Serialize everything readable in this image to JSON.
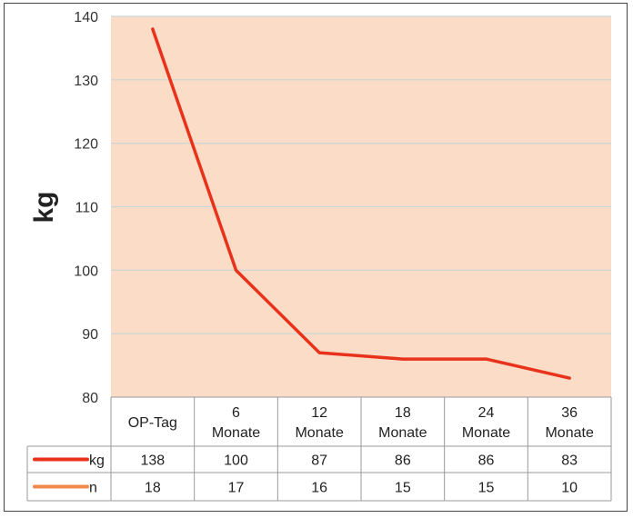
{
  "chart_data": {
    "type": "line",
    "title": "",
    "xlabel": "",
    "ylabel": "kg",
    "ylim": [
      80,
      140
    ],
    "yticks": [
      80,
      90,
      100,
      110,
      120,
      130,
      140
    ],
    "grid": true,
    "categories": [
      [
        "OP-Tag"
      ],
      [
        "6",
        "Monate"
      ],
      [
        "12",
        "Monate"
      ],
      [
        "18",
        "Monate"
      ],
      [
        "24",
        "Monate"
      ],
      [
        "36",
        "Monate"
      ]
    ],
    "series": [
      {
        "name": "kg",
        "values": [
          138,
          100,
          87,
          86,
          86,
          83
        ],
        "color": "#e8321b"
      },
      {
        "name": "n",
        "values": [
          18,
          17,
          16,
          15,
          15,
          10
        ],
        "color": "#f08a4b"
      }
    ],
    "plot_background": "#fbdcc6",
    "gridline_color": "#c7d6d6"
  }
}
